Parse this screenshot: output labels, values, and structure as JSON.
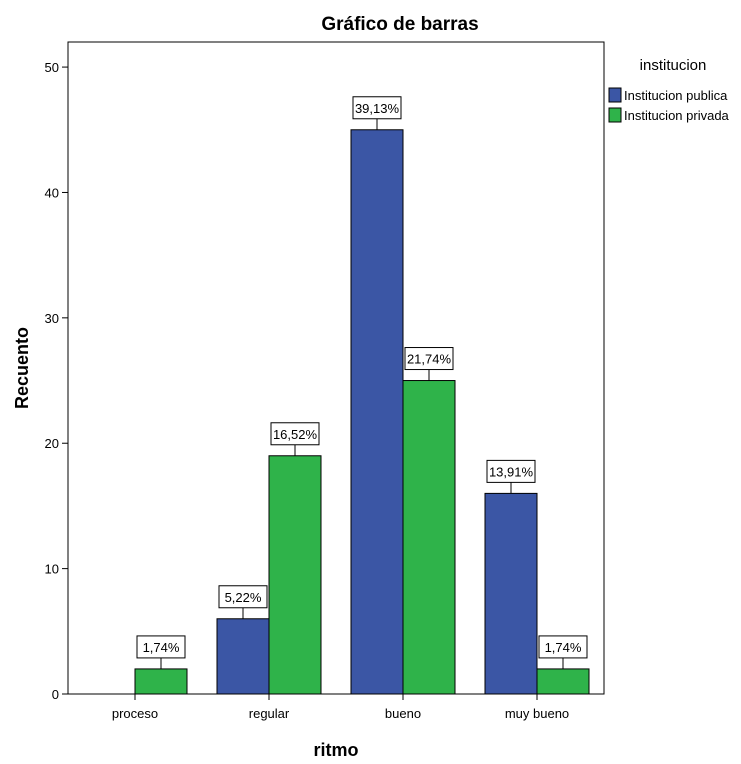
{
  "chart_data": {
    "type": "bar",
    "title": "Gráfico de barras",
    "xlabel": "ritmo",
    "ylabel": "Recuento",
    "categories": [
      "proceso",
      "regular",
      "bueno",
      "muy bueno"
    ],
    "ylim": [
      0,
      52
    ],
    "yticks": [
      "0",
      "10",
      "20",
      "30",
      "40",
      "50"
    ],
    "grid": false,
    "legend_title": "institucion",
    "legend_position": "top-right, outside plot",
    "series": [
      {
        "name": "Institucion publica",
        "color": "#3b56a5",
        "values": [
          0,
          6,
          45,
          16
        ],
        "labels": [
          "",
          "5,22%",
          "39,13%",
          "13,91%"
        ]
      },
      {
        "name": "Institucion privada",
        "color": "#2fb34a",
        "values": [
          2,
          19,
          25,
          2
        ],
        "labels": [
          "1,74%",
          "16,52%",
          "21,74%",
          "1,74%"
        ]
      }
    ]
  }
}
